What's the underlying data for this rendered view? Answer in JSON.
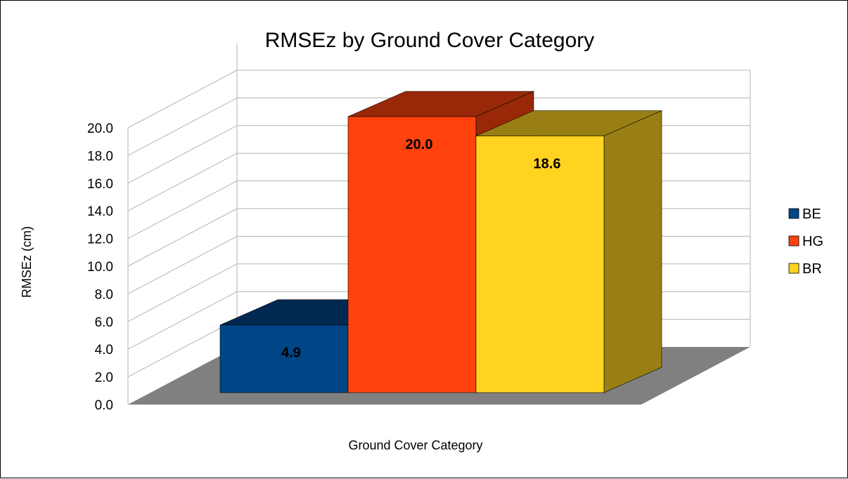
{
  "chart_data": {
    "type": "bar",
    "title": "RMSEz by Ground Cover Category",
    "xlabel": "Ground Cover Category",
    "ylabel": "RMSEz (cm)",
    "ylim": [
      0,
      20
    ],
    "yticks": [
      "0.0",
      "2.0",
      "4.0",
      "6.0",
      "8.0",
      "10.0",
      "12.0",
      "14.0",
      "16.0",
      "18.0",
      "20.0"
    ],
    "grid": true,
    "legend_position": "right",
    "three_d": true,
    "series": [
      {
        "name": "BE",
        "value": 4.9,
        "label": "4.9",
        "color": "#004586",
        "top_color": "#002951",
        "side_color": "#002951"
      },
      {
        "name": "HG",
        "value": 20.0,
        "label": "20.0",
        "color": "#FF420E",
        "top_color": "#992808",
        "side_color": "#992808"
      },
      {
        "name": "BR",
        "value": 18.6,
        "label": "18.6",
        "color": "#FFD320",
        "top_color": "#997F13",
        "side_color": "#997F13"
      }
    ],
    "floor_color": "#808080"
  }
}
